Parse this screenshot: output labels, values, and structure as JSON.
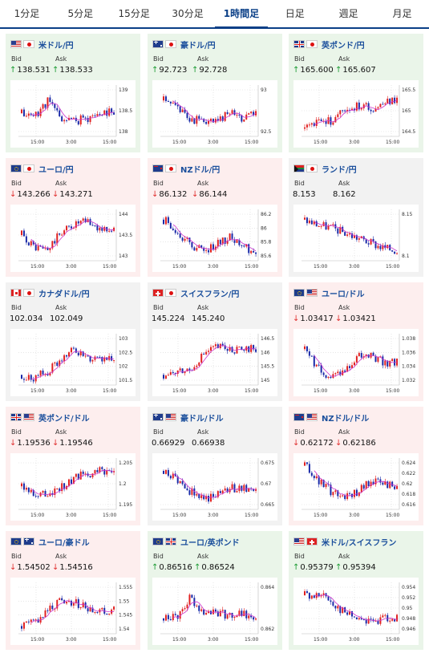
{
  "tabs": [
    {
      "label": "1分足",
      "active": false
    },
    {
      "label": "5分足",
      "active": false
    },
    {
      "label": "15分足",
      "active": false
    },
    {
      "label": "30分足",
      "active": false
    },
    {
      "label": "1時間足",
      "active": true
    },
    {
      "label": "日足",
      "active": false
    },
    {
      "label": "週足",
      "active": false
    },
    {
      "label": "月足",
      "active": false
    }
  ],
  "labels": {
    "bid": "Bid",
    "ask": "Ask"
  },
  "x_ticks": [
    "15:00",
    "3:00",
    "15:00"
  ],
  "colors": {
    "up": "#1a9a32",
    "down": "#e03030",
    "candle_up": "#e02020",
    "candle_down": "#1a2aa8",
    "ma": "#cc33cc"
  },
  "panels": [
    {
      "name": "米ドル/円",
      "flags": [
        "us",
        "jp"
      ],
      "bid": "138.531",
      "ask": "138.533",
      "bid_dir": "up",
      "ask_dir": "up",
      "state": "up",
      "y_ticks": [
        "139",
        "138.5",
        "138"
      ],
      "seed": 11,
      "trend": [
        0.45,
        0.4,
        0.7,
        0.35,
        0.3,
        0.35,
        0.45,
        0.5
      ]
    },
    {
      "name": "豪ドル/円",
      "flags": [
        "au",
        "jp"
      ],
      "bid": "92.723",
      "ask": "92.728",
      "bid_dir": "up",
      "ask_dir": "up",
      "state": "up",
      "y_ticks": [
        "93",
        "92.5"
      ],
      "seed": 23,
      "trend": [
        0.7,
        0.55,
        0.35,
        0.3,
        0.25,
        0.5,
        0.35,
        0.45
      ]
    },
    {
      "name": "英ポンド/円",
      "flags": [
        "gb",
        "jp"
      ],
      "bid": "165.600",
      "ask": "165.607",
      "bid_dir": "up",
      "ask_dir": "up",
      "state": "up",
      "y_ticks": [
        "165.5",
        "165",
        "164.5"
      ],
      "seed": 37,
      "trend": [
        0.15,
        0.25,
        0.3,
        0.55,
        0.6,
        0.55,
        0.65,
        0.75
      ]
    },
    {
      "name": "ユーロ/円",
      "flags": [
        "eu",
        "jp"
      ],
      "bid": "143.266",
      "ask": "143.271",
      "bid_dir": "down",
      "ask_dir": "down",
      "state": "down",
      "y_ticks": [
        "144",
        "143.5",
        "143"
      ],
      "seed": 41,
      "trend": [
        0.5,
        0.25,
        0.2,
        0.55,
        0.7,
        0.75,
        0.6,
        0.6
      ]
    },
    {
      "name": "NZドル/円",
      "flags": [
        "nz",
        "jp"
      ],
      "bid": "86.132",
      "ask": "86.144",
      "bid_dir": "down",
      "ask_dir": "down",
      "state": "down",
      "y_ticks": [
        "86.2",
        "86",
        "85.8",
        "85.6"
      ],
      "seed": 53,
      "trend": [
        0.8,
        0.6,
        0.3,
        0.2,
        0.3,
        0.45,
        0.3,
        0.15
      ]
    },
    {
      "name": "ランド/円",
      "flags": [
        "za",
        "jp"
      ],
      "bid": "8.153",
      "ask": "8.162",
      "bid_dir": "",
      "ask_dir": "",
      "state": "flat",
      "y_ticks": [
        "8.15",
        "8.1"
      ],
      "seed": 67,
      "trend": [
        0.8,
        0.7,
        0.65,
        0.55,
        0.45,
        0.35,
        0.25,
        0.2
      ]
    },
    {
      "name": "カナダドル/円",
      "flags": [
        "ca",
        "jp"
      ],
      "bid": "102.034",
      "ask": "102.049",
      "bid_dir": "",
      "ask_dir": "",
      "state": "flat",
      "y_ticks": [
        "103",
        "102.5",
        "102",
        "101.5"
      ],
      "seed": 71,
      "trend": [
        0.2,
        0.15,
        0.25,
        0.5,
        0.7,
        0.55,
        0.45,
        0.5
      ]
    },
    {
      "name": "スイスフラン/円",
      "flags": [
        "ch",
        "jp"
      ],
      "bid": "145.224",
      "ask": "145.240",
      "bid_dir": "",
      "ask_dir": "",
      "state": "flat",
      "y_ticks": [
        "146.5",
        "146",
        "145.5",
        "145"
      ],
      "seed": 83,
      "trend": [
        0.2,
        0.25,
        0.3,
        0.6,
        0.75,
        0.7,
        0.65,
        0.72
      ]
    },
    {
      "name": "ユーロ/ドル",
      "flags": [
        "eu",
        "us"
      ],
      "bid": "1.03417",
      "ask": "1.03421",
      "bid_dir": "down",
      "ask_dir": "down",
      "state": "down",
      "y_ticks": [
        "1.038",
        "1.036",
        "1.034",
        "1.032"
      ],
      "seed": 97,
      "trend": [
        0.7,
        0.35,
        0.15,
        0.3,
        0.55,
        0.6,
        0.45,
        0.45
      ]
    },
    {
      "name": "英ポンド/ドル",
      "flags": [
        "gb",
        "us"
      ],
      "bid": "1.19536",
      "ask": "1.19546",
      "bid_dir": "down",
      "ask_dir": "down",
      "state": "down",
      "y_ticks": [
        "1.205",
        "1.2",
        "1.195"
      ],
      "seed": 103,
      "trend": [
        0.45,
        0.3,
        0.25,
        0.45,
        0.6,
        0.7,
        0.75,
        0.8
      ]
    },
    {
      "name": "豪ドル/ドル",
      "flags": [
        "au",
        "us"
      ],
      "bid": "0.66929",
      "ask": "0.66938",
      "bid_dir": "",
      "ask_dir": "",
      "state": "flat",
      "y_ticks": [
        "0.675",
        "0.67",
        "0.665"
      ],
      "seed": 113,
      "trend": [
        0.75,
        0.6,
        0.35,
        0.2,
        0.3,
        0.4,
        0.45,
        0.35
      ]
    },
    {
      "name": "NZドル/ドル",
      "flags": [
        "nz",
        "us"
      ],
      "bid": "0.62172",
      "ask": "0.62186",
      "bid_dir": "down",
      "ask_dir": "down",
      "state": "down",
      "y_ticks": [
        "0.624",
        "0.622",
        "0.62",
        "0.618",
        "0.616"
      ],
      "seed": 127,
      "trend": [
        0.85,
        0.55,
        0.35,
        0.25,
        0.35,
        0.55,
        0.5,
        0.45
      ]
    },
    {
      "name": "ユーロ/豪ドル",
      "flags": [
        "eu",
        "au"
      ],
      "bid": "1.54502",
      "ask": "1.54516",
      "bid_dir": "down",
      "ask_dir": "down",
      "state": "down",
      "y_ticks": [
        "1.555",
        "1.55",
        "1.545",
        "1.54"
      ],
      "seed": 131,
      "trend": [
        0.15,
        0.25,
        0.45,
        0.7,
        0.6,
        0.5,
        0.45,
        0.48
      ]
    },
    {
      "name": "ユーロ/英ポンド",
      "flags": [
        "eu",
        "gb"
      ],
      "bid": "0.86516",
      "ask": "0.86524",
      "bid_dir": "up",
      "ask_dir": "up",
      "state": "up",
      "y_ticks": [
        "0.864",
        "0.862"
      ],
      "seed": 149,
      "trend": [
        0.3,
        0.35,
        0.7,
        0.45,
        0.4,
        0.35,
        0.4,
        0.25
      ]
    },
    {
      "name": "米ドル/スイスフラン",
      "flags": [
        "us",
        "ch"
      ],
      "bid": "0.95379",
      "ask": "0.95394",
      "bid_dir": "up",
      "ask_dir": "up",
      "state": "up",
      "y_ticks": [
        "0.954",
        "0.952",
        "0.95",
        "0.948",
        "0.946"
      ],
      "seed": 151,
      "trend": [
        0.75,
        0.8,
        0.6,
        0.4,
        0.3,
        0.25,
        0.3,
        0.3
      ]
    }
  ]
}
